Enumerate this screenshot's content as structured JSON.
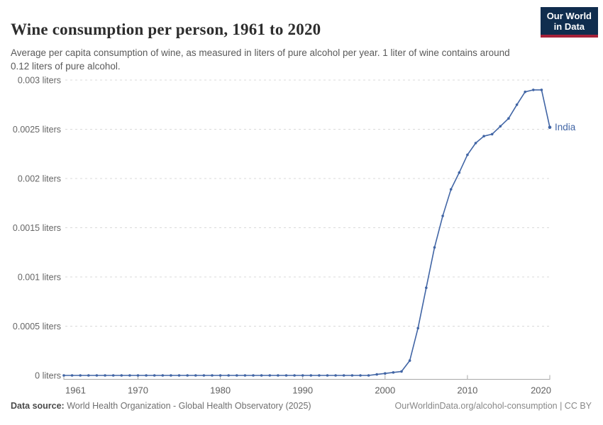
{
  "header": {
    "title": "Wine consumption per person, 1961 to 2020",
    "subtitle": "Average per capita consumption of wine, as measured in liters of pure alcohol per year. 1 liter of wine contains around 0.12 liters of pure alcohol.",
    "logo": {
      "line1": "Our World",
      "line2": "in Data",
      "bg_color": "#102d4e",
      "bar_color": "#a62139"
    }
  },
  "footer": {
    "datasource_label": "Data source:",
    "datasource_text": " World Health Organization - Global Health Observatory (2025)",
    "link_text": "OurWorldinData.org/alcohol-consumption | CC BY"
  },
  "chart_data": {
    "type": "line",
    "title": "Wine consumption per person, 1961 to 2020",
    "xlabel": "",
    "ylabel": "liters of pure alcohol",
    "entity_label": "India",
    "line_color": "#4165a5",
    "grid": "dashed",
    "legend_position": "end-of-line",
    "xlim": [
      1961,
      2020
    ],
    "ylim": [
      0,
      0.003
    ],
    "x_ticks": [
      1961,
      1970,
      1980,
      1990,
      2000,
      2010,
      2020
    ],
    "y_ticks": [
      {
        "value": 0,
        "label": "0 liters"
      },
      {
        "value": 0.0005,
        "label": "0.0005 liters"
      },
      {
        "value": 0.001,
        "label": "0.001 liters"
      },
      {
        "value": 0.0015,
        "label": "0.0015 liters"
      },
      {
        "value": 0.002,
        "label": "0.002 liters"
      },
      {
        "value": 0.0025,
        "label": "0.0025 liters"
      },
      {
        "value": 0.003,
        "label": "0.003 liters"
      }
    ],
    "series": [
      {
        "name": "India",
        "x": [
          1961,
          1962,
          1963,
          1964,
          1965,
          1966,
          1967,
          1968,
          1969,
          1970,
          1971,
          1972,
          1973,
          1974,
          1975,
          1976,
          1977,
          1978,
          1979,
          1980,
          1981,
          1982,
          1983,
          1984,
          1985,
          1986,
          1987,
          1988,
          1989,
          1990,
          1991,
          1992,
          1993,
          1994,
          1995,
          1996,
          1997,
          1998,
          1999,
          2000,
          2001,
          2002,
          2003,
          2004,
          2005,
          2006,
          2007,
          2008,
          2009,
          2010,
          2011,
          2012,
          2013,
          2014,
          2015,
          2016,
          2017,
          2018,
          2019,
          2020
        ],
        "values": [
          0,
          0,
          0,
          0,
          0,
          0,
          0,
          0,
          0,
          0,
          0,
          0,
          0,
          0,
          0,
          0,
          0,
          0,
          0,
          0,
          0,
          0,
          0,
          0,
          0,
          0,
          0,
          0,
          0,
          0,
          0,
          0,
          0,
          0,
          0,
          0,
          0,
          0,
          1e-05,
          2e-05,
          3e-05,
          4e-05,
          0.00015,
          0.00048,
          0.00089,
          0.0013,
          0.00162,
          0.00189,
          0.00206,
          0.00224,
          0.00236,
          0.00243,
          0.00245,
          0.00253,
          0.00261,
          0.00275,
          0.00288,
          0.0029,
          0.0029,
          0.00252
        ]
      }
    ]
  }
}
